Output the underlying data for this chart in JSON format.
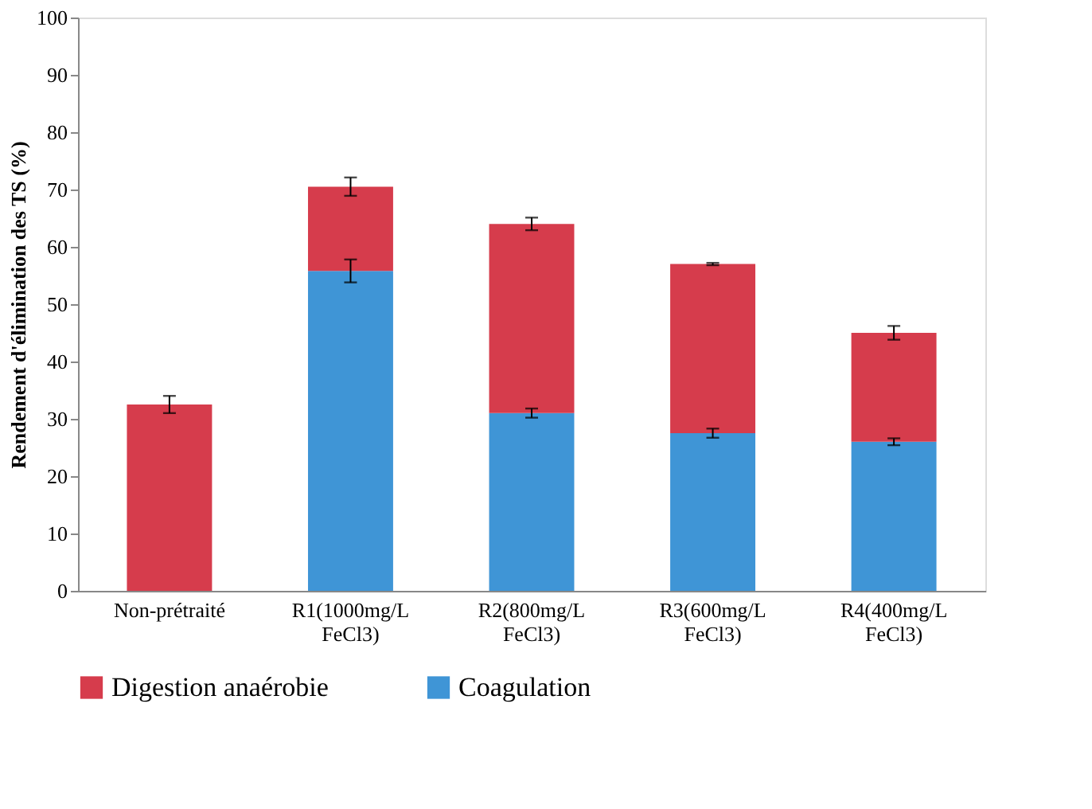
{
  "chart_data": {
    "type": "bar",
    "stacked": true,
    "ylabel": "Rendement d'élimination des TS (%)",
    "categories": [
      "Non-prétraité",
      "R1(1000mg/L FeCl3)",
      "R2(800mg/L FeCl3)",
      "R3(600mg/L FeCl3)",
      "R4(400mg/L FeCl3)"
    ],
    "series": [
      {
        "name": "Coagulation",
        "color": "#3f95d6",
        "values": [
          null,
          55.8,
          31,
          27.5,
          26
        ],
        "errors": [
          null,
          2,
          0.8,
          0.8,
          0.6
        ]
      },
      {
        "name": "Digestion anaérobie",
        "color": "#d63c4c",
        "values": [
          32.5,
          14.7,
          33,
          29.5,
          19
        ],
        "errors": [
          1.5,
          1.6,
          1.1,
          0.2,
          1.2
        ]
      }
    ],
    "ylim": [
      0,
      100
    ],
    "yticks": [
      0,
      10,
      20,
      30,
      40,
      50,
      60,
      70,
      80,
      90,
      100
    ],
    "grid": false,
    "legend": "bottom"
  }
}
